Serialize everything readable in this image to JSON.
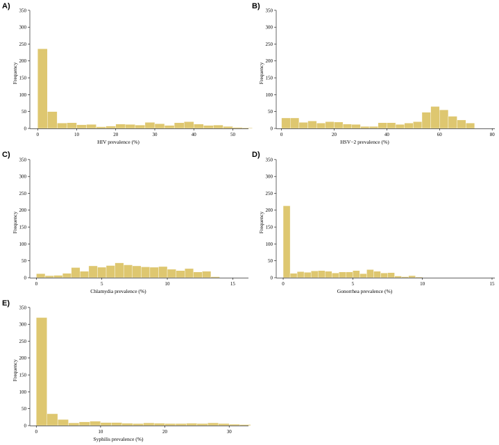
{
  "colors": {
    "bar": "#DEC770"
  },
  "chart_data": [
    {
      "type": "bar",
      "panel": "A)",
      "xlabel": "HIV prevalence (%)",
      "ylabel": "Frequency",
      "xlim": [
        -2,
        54
      ],
      "ylim": [
        0,
        360
      ],
      "xticks": [
        0,
        10,
        20,
        30,
        40,
        50
      ],
      "yticks": [
        0,
        50,
        100,
        150,
        200,
        250,
        300,
        350
      ],
      "bin_start": 0,
      "bin_width": 2.5,
      "values": [
        236,
        50,
        16,
        17,
        11,
        12,
        5,
        7,
        13,
        12,
        10,
        18,
        14,
        9,
        17,
        20,
        13,
        9,
        10,
        6,
        3,
        2
      ]
    },
    {
      "type": "bar",
      "panel": "B)",
      "xlabel": "HSV−2 prevalence (%)",
      "ylabel": "Frequency",
      "xlim": [
        -2,
        81
      ],
      "ylim": [
        0,
        360
      ],
      "xticks": [
        0,
        20,
        40,
        60,
        80
      ],
      "yticks": [
        0,
        50,
        100,
        150,
        200,
        250,
        300,
        350
      ],
      "bin_start": 0,
      "bin_width": 3.333,
      "values": [
        31,
        31,
        18,
        22,
        16,
        20,
        19,
        13,
        12,
        6,
        6,
        17,
        17,
        12,
        16,
        20,
        48,
        65,
        55,
        36,
        25,
        16
      ]
    },
    {
      "type": "bar",
      "panel": "C)",
      "xlabel": "Chlamydia prevalence (%)",
      "ylabel": "Frequency",
      "xlim": [
        -0.5,
        16.2
      ],
      "ylim": [
        0,
        360
      ],
      "xticks": [
        0,
        5,
        10,
        15
      ],
      "yticks": [
        0,
        50,
        100,
        150,
        200,
        250,
        300,
        350
      ],
      "bin_start": 0,
      "bin_width": 0.6667,
      "values": [
        12,
        6,
        7,
        13,
        30,
        19,
        35,
        31,
        36,
        44,
        38,
        35,
        32,
        31,
        33,
        25,
        21,
        27,
        17,
        19,
        3
      ]
    },
    {
      "type": "bar",
      "panel": "D)",
      "xlabel": "Gonorrhea prevalence (%)",
      "ylabel": "Frequency",
      "xlim": [
        -0.5,
        15.2
      ],
      "ylim": [
        0,
        360
      ],
      "xticks": [
        0,
        5,
        10,
        15
      ],
      "yticks": [
        0,
        50,
        100,
        150,
        200,
        250,
        300,
        350
      ],
      "bin_start": 0,
      "bin_width": 0.5,
      "values": [
        213,
        13,
        18,
        16,
        20,
        21,
        19,
        14,
        17,
        17,
        21,
        12,
        24,
        19,
        14,
        15,
        5,
        3,
        6,
        2
      ]
    },
    {
      "type": "bar",
      "panel": "E)",
      "xlabel": "Syphilis prevalence (%)",
      "ylabel": "Frequency",
      "xlim": [
        -1,
        33
      ],
      "ylim": [
        0,
        360
      ],
      "xticks": [
        0,
        10,
        20,
        30
      ],
      "yticks": [
        0,
        50,
        100,
        150,
        200,
        250,
        300,
        350
      ],
      "bin_start": 0,
      "bin_width": 1.6667,
      "values": [
        320,
        35,
        18,
        8,
        11,
        13,
        9,
        9,
        7,
        6,
        8,
        7,
        6,
        6,
        7,
        6,
        8,
        6,
        4,
        3
      ]
    }
  ]
}
